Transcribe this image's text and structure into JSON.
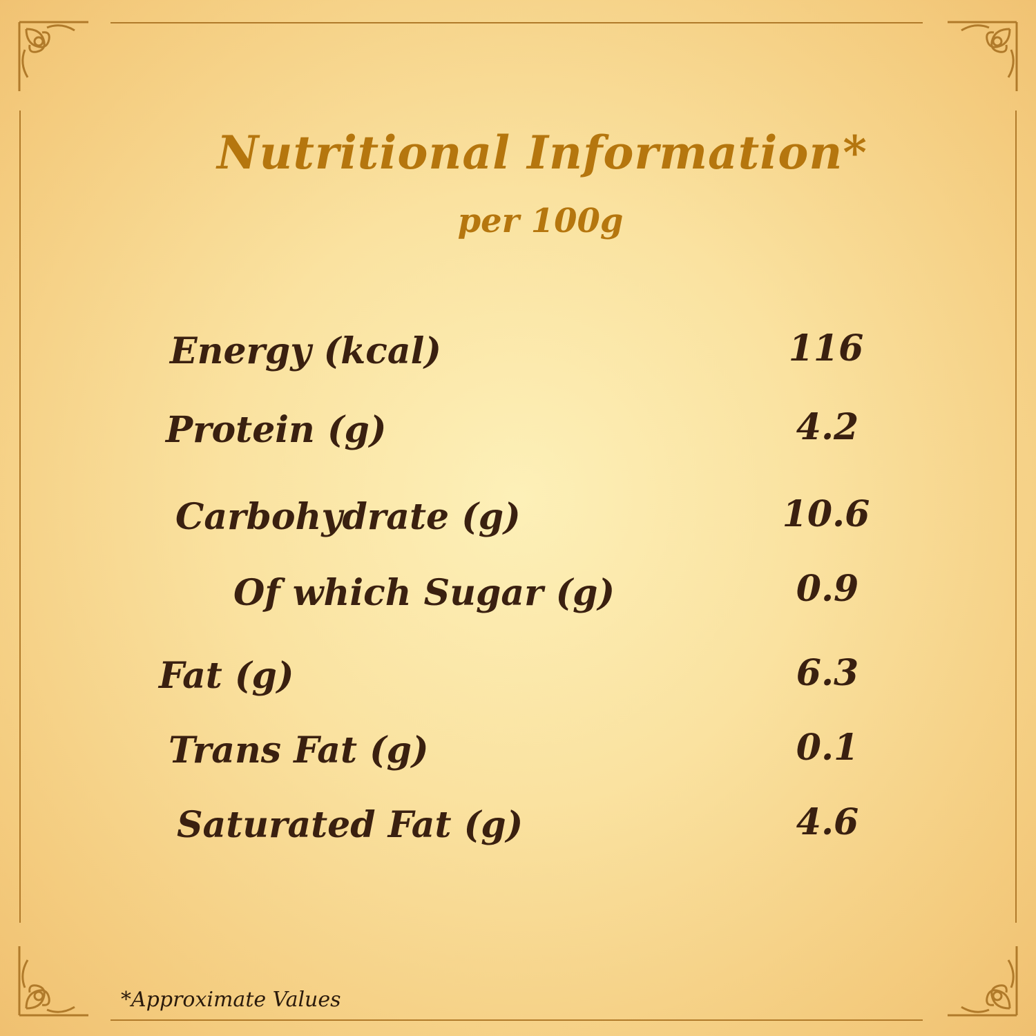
{
  "title": "Nutritional Information*",
  "subtitle": "per 100g",
  "rows": [
    {
      "label": "Energy (kcal)",
      "value": "116"
    },
    {
      "label": "Protein (g)",
      "value": "4.2"
    },
    {
      "label": "Carbohydrate (g)",
      "value": "10.6"
    },
    {
      "label": "Of which Sugar (g)",
      "value": "0.9"
    },
    {
      "label": "Fat (g)",
      "value": "6.3"
    },
    {
      "label": "Trans Fat (g)",
      "value": "0.1"
    },
    {
      "label": "Saturated Fat (g)",
      "value": "4.6"
    }
  ],
  "footnote": "*Approximate Values",
  "colors": {
    "title": "#b5760e",
    "text": "#3a2010",
    "frame": "#b07a2a"
  }
}
